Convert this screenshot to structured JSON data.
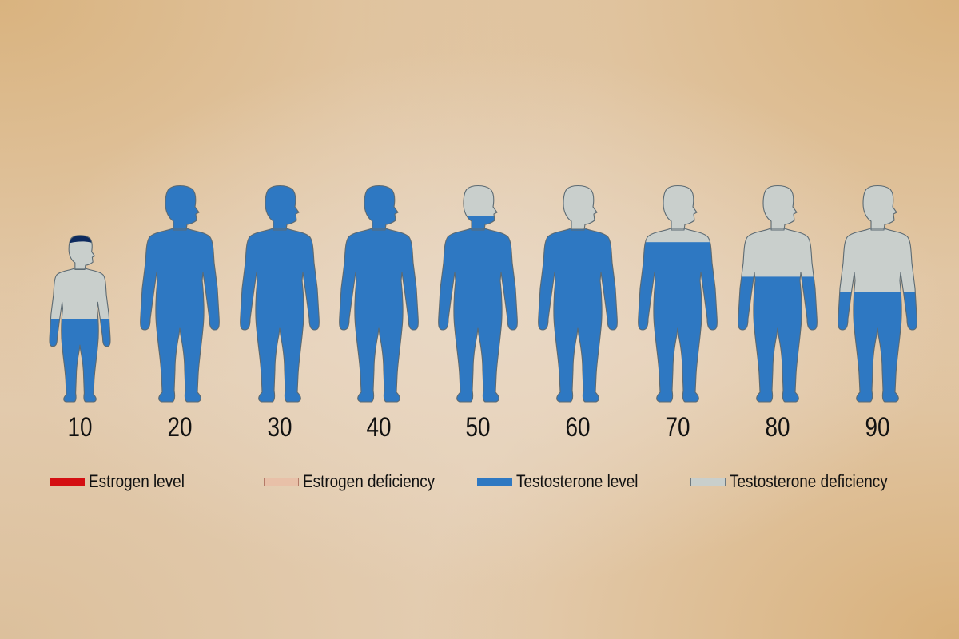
{
  "chart_data": {
    "type": "pictogram",
    "title": "",
    "categories": [
      "10",
      "20",
      "30",
      "40",
      "50",
      "60",
      "70",
      "80",
      "90"
    ],
    "series": [
      {
        "name": "Testosterone level",
        "values": [
          0.5,
          1.0,
          1.0,
          1.0,
          0.86,
          0.8,
          0.74,
          0.58,
          0.51
        ]
      },
      {
        "name": "Testosterone deficiency",
        "values": [
          0.5,
          0.0,
          0.0,
          0.0,
          0.14,
          0.2,
          0.26,
          0.42,
          0.49
        ]
      }
    ],
    "legend": {
      "position": "bottom",
      "items": [
        {
          "label": "Estrogen level",
          "color": "#d40f12",
          "style": "filled"
        },
        {
          "label": "Estrogen deficiency",
          "color": "#e8c0a8",
          "style": "outlined"
        },
        {
          "label": "Testosterone level",
          "color": "#2e78c2",
          "style": "filled"
        },
        {
          "label": "Testosterone deficiency",
          "color": "#c9cfcc",
          "style": "outlined"
        }
      ]
    },
    "colors": {
      "testosterone": "#2e78c2",
      "deficiency": "#c9cfcc",
      "outline": "#5c6a72",
      "child_hair": "#0d2a5e"
    }
  }
}
